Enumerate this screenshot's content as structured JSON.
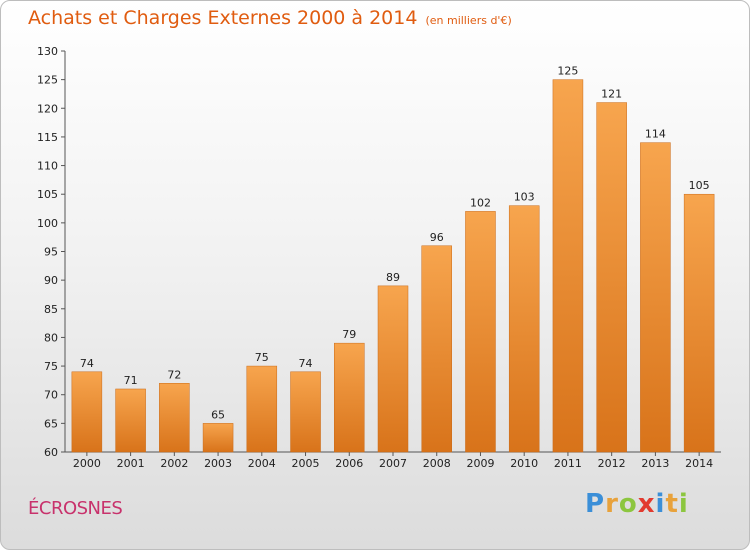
{
  "title": "Achats et Charges Externes 2000 à 2014",
  "subtitle": "(en milliers d'€)",
  "town": "ÉCROSNES",
  "logo": {
    "text": "Proxiti",
    "letters": [
      "P",
      "r",
      "o",
      "x",
      "i",
      "t",
      "i"
    ],
    "colors": [
      "#3b8fd8",
      "#e8a23b",
      "#8cc63f",
      "#e23a2f",
      "#3b8fd8",
      "#e8a23b",
      "#8cc63f"
    ]
  },
  "colors": {
    "bar_top": "#f7a54e",
    "bar_bottom": "#d8731a",
    "bar_stroke": "#c96a18",
    "title": "#e05c10",
    "town": "#c8326c"
  },
  "chart_data": {
    "type": "bar",
    "title": "Achats et Charges Externes 2000 à 2014",
    "subtitle": "(en milliers d'€)",
    "categories": [
      "2000",
      "2001",
      "2002",
      "2003",
      "2004",
      "2005",
      "2006",
      "2007",
      "2008",
      "2009",
      "2010",
      "2011",
      "2012",
      "2013",
      "2014"
    ],
    "values": [
      74,
      71,
      72,
      65,
      75,
      74,
      79,
      89,
      96,
      102,
      103,
      125,
      121,
      114,
      105
    ],
    "ylim": [
      60,
      130
    ],
    "yticks": [
      60,
      65,
      70,
      75,
      80,
      85,
      90,
      95,
      100,
      105,
      110,
      115,
      120,
      125,
      130
    ],
    "grid": false,
    "legend": "none"
  }
}
